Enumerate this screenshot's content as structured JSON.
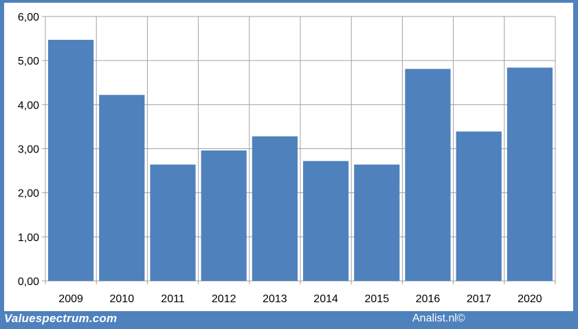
{
  "chart_data": {
    "type": "bar",
    "categories": [
      "2009",
      "2010",
      "2011",
      "2012",
      "2013",
      "2014",
      "2015",
      "2016",
      "2017",
      "2020"
    ],
    "values": [
      5.47,
      4.22,
      2.64,
      2.96,
      3.28,
      2.72,
      2.64,
      4.81,
      3.39,
      4.84
    ],
    "y_ticks": [
      "0,00",
      "1,00",
      "2,00",
      "3,00",
      "4,00",
      "5,00",
      "6,00"
    ],
    "ylim": [
      0,
      6
    ],
    "grid": true,
    "bar_color": "#4f81bd",
    "legend": "none"
  },
  "footer": {
    "source_left": "Valuespectrum.com",
    "source_right": "Analist.nl©"
  },
  "colors": {
    "frame": "#4f81bd",
    "grid": "#a0a0a0",
    "background": "#ffffff"
  }
}
